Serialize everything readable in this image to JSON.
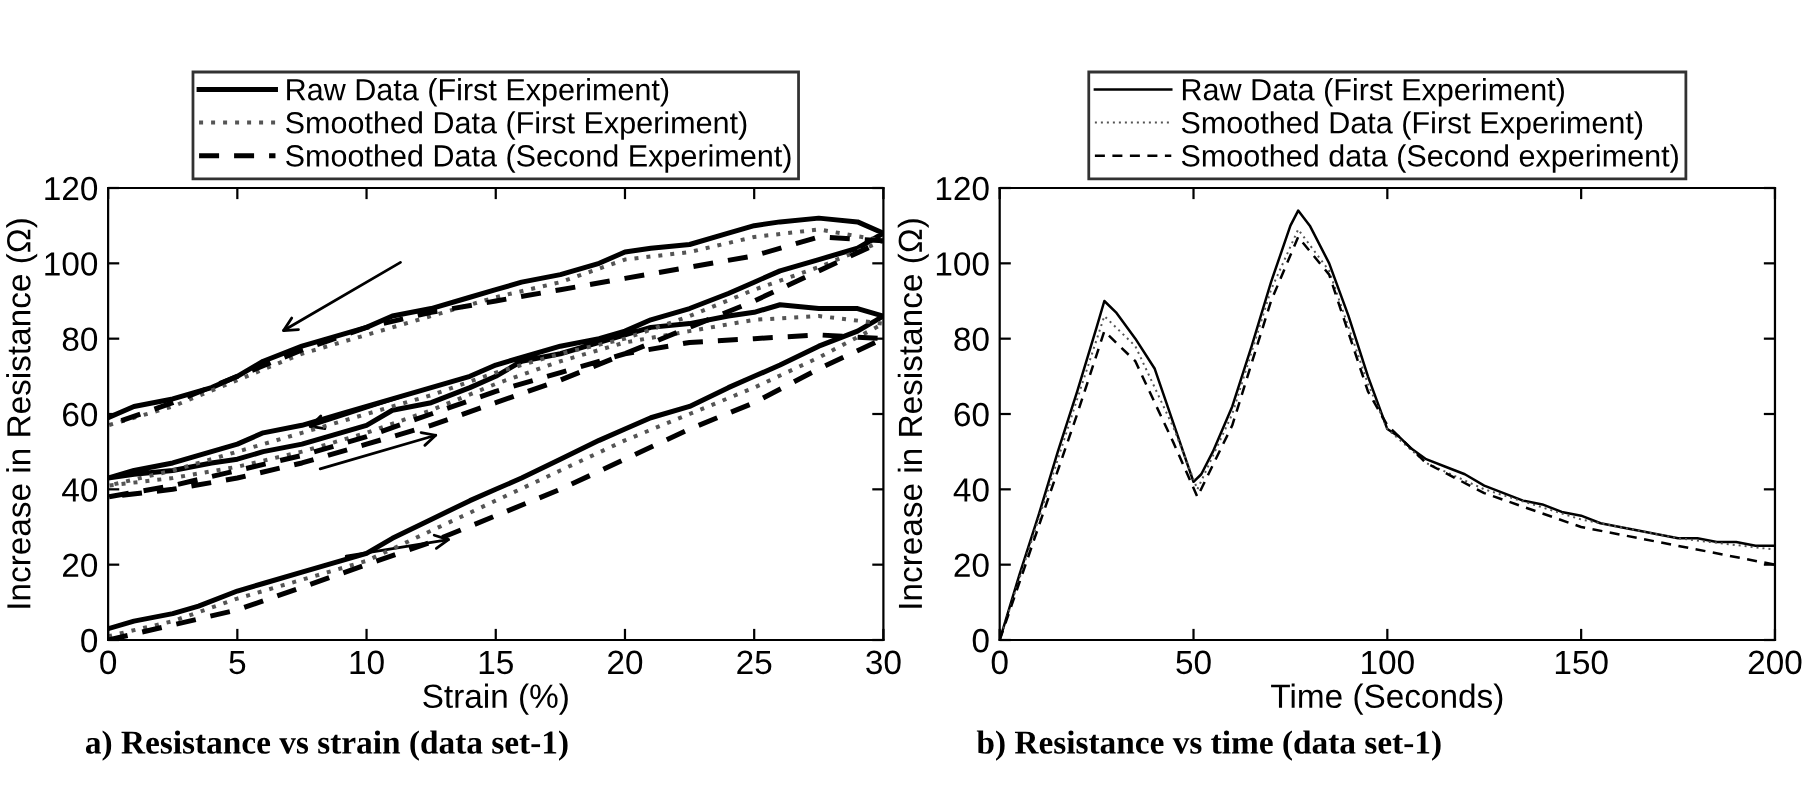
{
  "chart_data": [
    {
      "type": "line",
      "title": "a) Resistance vs strain (data set-1)",
      "xlabel": "Strain (%)",
      "ylabel": "Increase in Resistance (Ω)",
      "xlim": [
        0,
        30
      ],
      "ylim": [
        0,
        120
      ],
      "xticks": [
        0,
        5,
        10,
        15,
        20,
        25,
        30
      ],
      "yticks": [
        0,
        20,
        40,
        60,
        80,
        100,
        120
      ],
      "grid": false,
      "legend": "top",
      "marker": "none",
      "series": [
        {
          "name": "Raw Data (First Experiment)",
          "color": "#000000",
          "line_style": "solid",
          "x": [
            0,
            1,
            2.5,
            3.5,
            5,
            6,
            7.5,
            9,
            10,
            11,
            12.5,
            14,
            15,
            16,
            17.5,
            19,
            20,
            21,
            22.5,
            24,
            25,
            26,
            27.5,
            29,
            30,
            29,
            27.5,
            26,
            25,
            24,
            22.5,
            21,
            20,
            19,
            17.5,
            16,
            15,
            14,
            12.5,
            11,
            10,
            9,
            7.5,
            6,
            5,
            4,
            2.5,
            1,
            0,
            1,
            2.5,
            4,
            5,
            6,
            7.5,
            9,
            10,
            11,
            12.5,
            14,
            15,
            16,
            17.5,
            19,
            20,
            21,
            22.5,
            24,
            25,
            26,
            27.5,
            29,
            30,
            29,
            27.5,
            26,
            25,
            24,
            22.5,
            21,
            20,
            19,
            17.5,
            16,
            15,
            14,
            12.5,
            11,
            10,
            9,
            7.5,
            6,
            5,
            4,
            2.5,
            1,
            0
          ],
          "values": [
            3,
            5,
            7,
            9,
            13,
            15,
            18,
            21,
            23,
            27,
            32,
            37,
            40,
            43,
            48,
            53,
            56,
            59,
            62,
            67,
            70,
            73,
            78,
            82,
            86,
            88,
            88,
            89,
            87,
            86,
            84,
            83,
            81,
            79,
            76,
            74,
            70,
            67,
            63,
            61,
            57,
            55,
            52,
            50,
            48,
            47,
            45,
            44,
            43,
            45,
            47,
            50,
            52,
            55,
            57,
            60,
            62,
            64,
            67,
            70,
            73,
            75,
            78,
            80,
            82,
            85,
            88,
            92,
            95,
            98,
            101,
            104,
            108,
            111,
            112,
            111,
            110,
            108,
            105,
            104,
            103,
            100,
            97,
            95,
            93,
            91,
            88,
            86,
            83,
            81,
            78,
            74,
            70,
            67,
            64,
            62,
            59
          ]
        },
        {
          "name": "Smoothed Data (First Experiment)",
          "color": "#555555",
          "line_style": "dotted",
          "x": [
            0,
            2.5,
            5,
            7.5,
            10,
            12.5,
            15,
            17.5,
            20,
            22.5,
            25,
            27.5,
            30,
            27.5,
            25,
            22.5,
            20,
            17.5,
            15,
            12.5,
            10,
            7.5,
            5,
            2.5,
            0,
            2.5,
            5,
            7.5,
            10,
            12.5,
            15,
            17.5,
            20,
            22.5,
            25,
            27.5,
            30,
            27.5,
            25,
            22.5,
            20,
            17.5,
            15,
            12.5,
            10,
            7.5,
            5,
            2.5,
            0
          ],
          "values": [
            1,
            5,
            11,
            16,
            21,
            29,
            37,
            45,
            53,
            60,
            67,
            75,
            84,
            86,
            85,
            82,
            79,
            74,
            68,
            61,
            55,
            50,
            46,
            43,
            41,
            45,
            50,
            55,
            60,
            65,
            71,
            76,
            80,
            86,
            93,
            99,
            106,
            109,
            107,
            103,
            101,
            95,
            91,
            86,
            81,
            76,
            69,
            62,
            57
          ]
        },
        {
          "name": "Smoothed Data (Second Experiment)",
          "color": "#000000",
          "line_style": "dashed",
          "x": [
            0,
            2.5,
            5,
            7.5,
            10,
            12.5,
            15,
            17.5,
            20,
            22.5,
            25,
            27.5,
            30,
            27.5,
            25,
            22.5,
            20,
            17.5,
            15,
            12.5,
            10,
            7.5,
            5,
            2.5,
            0,
            2.5,
            5,
            7.5,
            10,
            12.5,
            15,
            17.5,
            20,
            22.5,
            25,
            27.5,
            30,
            27.5,
            25,
            22.5,
            20,
            17.5,
            15,
            12.5,
            10,
            7.5,
            5,
            2.5,
            0
          ],
          "values": [
            0,
            4,
            8,
            14,
            20,
            26,
            33,
            40,
            48,
            56,
            63,
            72,
            80,
            81,
            80,
            79,
            76,
            71,
            66,
            60,
            54,
            49,
            45,
            41,
            38,
            40,
            43,
            47,
            52,
            57,
            63,
            69,
            76,
            83,
            90,
            98,
            106,
            107,
            102,
            99,
            96,
            93,
            90,
            87,
            83,
            77,
            70,
            63,
            57
          ]
        }
      ]
    },
    {
      "type": "line",
      "title": "b) Resistance vs time (data set-1)",
      "xlabel": "Time (Seconds)",
      "ylabel": "Increase in Resistance (Ω)",
      "xlim": [
        0,
        200
      ],
      "ylim": [
        0,
        120
      ],
      "xticks": [
        0,
        50,
        100,
        150,
        200
      ],
      "yticks": [
        0,
        20,
        40,
        60,
        80,
        100,
        120
      ],
      "grid": false,
      "legend": "top",
      "marker": "none",
      "series": [
        {
          "name": "Raw Data (First Experiment)",
          "color": "#000000",
          "line_style": "solid",
          "x": [
            0,
            5,
            10,
            15,
            20,
            25,
            27,
            30,
            35,
            40,
            45,
            50,
            52,
            55,
            60,
            65,
            70,
            75,
            77,
            80,
            85,
            90,
            95,
            100,
            103,
            106,
            110,
            115,
            120,
            125,
            130,
            135,
            140,
            145,
            150,
            155,
            160,
            165,
            170,
            175,
            180,
            185,
            190,
            195,
            200
          ],
          "values": [
            0,
            17,
            33,
            50,
            66,
            83,
            90,
            87,
            80,
            72,
            57,
            42,
            44,
            50,
            62,
            78,
            95,
            110,
            114,
            110,
            100,
            86,
            70,
            56,
            54,
            51,
            48,
            46,
            44,
            41,
            39,
            37,
            36,
            34,
            33,
            31,
            30,
            29,
            28,
            27,
            27,
            26,
            26,
            25,
            25
          ]
        },
        {
          "name": "Smoothed Data (First Experiment)",
          "color": "#555555",
          "line_style": "dotted",
          "x": [
            0,
            10,
            20,
            27,
            35,
            45,
            51,
            60,
            70,
            77,
            85,
            95,
            100,
            110,
            125,
            150,
            175,
            200
          ],
          "values": [
            0,
            32,
            64,
            86,
            78,
            56,
            40,
            60,
            93,
            109,
            98,
            68,
            56,
            47,
            40,
            32,
            27,
            24
          ]
        },
        {
          "name": "Smoothed data (Second experiment)",
          "color": "#000000",
          "line_style": "dashed",
          "x": [
            0,
            10,
            20,
            27,
            35,
            45,
            51,
            60,
            70,
            77,
            85,
            95,
            100,
            110,
            125,
            150,
            175,
            200
          ],
          "values": [
            0,
            30,
            60,
            82,
            74,
            52,
            38,
            57,
            90,
            107,
            97,
            66,
            57,
            47,
            39,
            30,
            25,
            20
          ]
        }
      ]
    }
  ]
}
